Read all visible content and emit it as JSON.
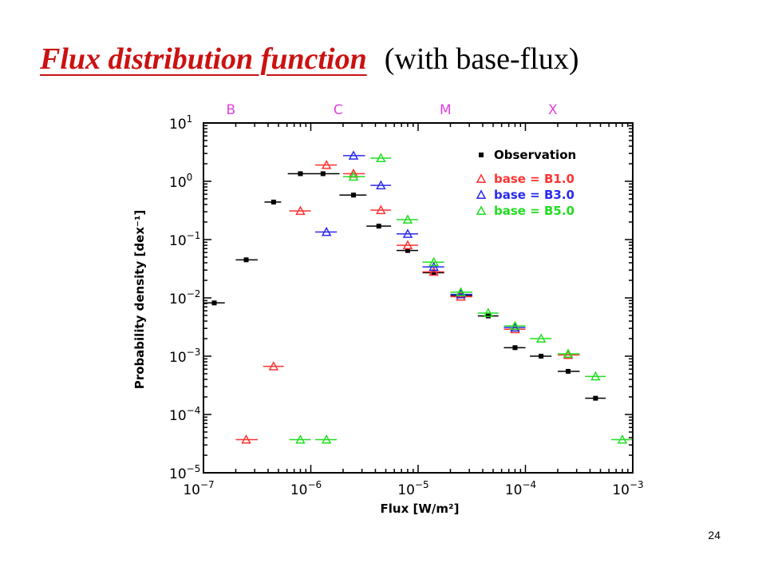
{
  "slide": {
    "title": "Flux distribution function",
    "subtitle": "(with base-flux)",
    "page_number": "24"
  },
  "chart_data": {
    "type": "scatter",
    "title": "",
    "xlabel": "Flux [W/m²]",
    "ylabel": "Probability density [dex⁻¹]",
    "xscale": "log",
    "yscale": "log",
    "xlim": [
      1e-07,
      0.001
    ],
    "ylim": [
      1e-05,
      10
    ],
    "x_ticks": [
      {
        "value": 1e-07,
        "base": "10",
        "exp": "−7"
      },
      {
        "value": 1e-06,
        "base": "10",
        "exp": "−6"
      },
      {
        "value": 1e-05,
        "base": "10",
        "exp": "−5"
      },
      {
        "value": 0.0001,
        "base": "10",
        "exp": "−4"
      },
      {
        "value": 0.001,
        "base": "10",
        "exp": "−3"
      }
    ],
    "y_ticks": [
      {
        "value": 1e-05,
        "base": "10",
        "exp": "−5"
      },
      {
        "value": 0.0001,
        "base": "10",
        "exp": "−4"
      },
      {
        "value": 0.001,
        "base": "10",
        "exp": "−3"
      },
      {
        "value": 0.01,
        "base": "10",
        "exp": "−2"
      },
      {
        "value": 0.1,
        "base": "10",
        "exp": "−1"
      },
      {
        "value": 1,
        "base": "10",
        "exp": "0"
      },
      {
        "value": 10,
        "base": "10",
        "exp": "1"
      }
    ],
    "class_labels": [
      {
        "label": "B",
        "x": 1.8e-07
      },
      {
        "label": "C",
        "x": 1.8e-06
      },
      {
        "label": "M",
        "x": 1.8e-05
      },
      {
        "label": "X",
        "x": 0.00018
      }
    ],
    "class_label_color": "#e040e0",
    "legend_position": "top-right",
    "series": [
      {
        "name": "Observation",
        "marker": "square",
        "color": "#000000",
        "points": [
          {
            "x": 1.26e-07,
            "y": 0.0082,
            "x_err": [
              1e-07,
              1.58e-07
            ]
          },
          {
            "x": 2.5e-07,
            "y": 0.045,
            "x_err": [
              2e-07,
              3.2e-07
            ]
          },
          {
            "x": 4.5e-07,
            "y": 0.44,
            "x_err": [
              3.7e-07,
              5.3e-07
            ]
          },
          {
            "x": 8e-07,
            "y": 1.35,
            "x_err": [
              6.1e-07,
              1e-06
            ]
          },
          {
            "x": 1.3e-06,
            "y": 1.35,
            "x_err": [
              1e-06,
              1.85e-06
            ]
          },
          {
            "x": 2.5e-06,
            "y": 0.58,
            "x_err": [
              1.85e-06,
              3.3e-06
            ]
          },
          {
            "x": 4.3e-06,
            "y": 0.17,
            "x_err": [
              3.3e-06,
              5.6e-06
            ]
          },
          {
            "x": 8e-06,
            "y": 0.065,
            "x_err": [
              6.3e-06,
              1e-05
            ]
          },
          {
            "x": 1.4e-05,
            "y": 0.027,
            "x_err": [
              1.1e-05,
              1.75e-05
            ]
          },
          {
            "x": 2.5e-05,
            "y": 0.011,
            "x_err": [
              2e-05,
              3.2e-05
            ]
          },
          {
            "x": 4.5e-05,
            "y": 0.0049,
            "x_err": [
              3.6e-05,
              5.6e-05
            ]
          },
          {
            "x": 8e-05,
            "y": 0.0014,
            "x_err": [
              6.3e-05,
              0.0001
            ]
          },
          {
            "x": 0.00014,
            "y": 0.001,
            "x_err": [
              0.00011,
              0.000175
            ]
          },
          {
            "x": 0.00025,
            "y": 0.00055,
            "x_err": [
              0.0002,
              0.00032
            ]
          },
          {
            "x": 0.00045,
            "y": 0.00019,
            "x_err": [
              0.00036,
              0.00056
            ]
          }
        ]
      },
      {
        "name": "base = B1.0",
        "marker": "triangle",
        "color": "#ff3333",
        "points": [
          {
            "x": 2.5e-07,
            "y": 3.7e-05,
            "x_err": [
              2e-07,
              3.2e-07
            ]
          },
          {
            "x": 4.5e-07,
            "y": 0.00067,
            "x_err": [
              3.6e-07,
              5.6e-07
            ]
          },
          {
            "x": 8e-07,
            "y": 0.31,
            "x_err": [
              6.3e-07,
              1e-06
            ]
          },
          {
            "x": 1.4e-06,
            "y": 1.9,
            "x_err": [
              1.1e-06,
              1.75e-06
            ]
          },
          {
            "x": 2.5e-06,
            "y": 1.35,
            "x_err": [
              2e-06,
              3.2e-06
            ]
          },
          {
            "x": 4.5e-06,
            "y": 0.32,
            "x_err": [
              3.6e-06,
              5.6e-06
            ]
          },
          {
            "x": 8e-06,
            "y": 0.08,
            "x_err": [
              6.3e-06,
              1e-05
            ]
          },
          {
            "x": 1.4e-05,
            "y": 0.028,
            "x_err": [
              1.1e-05,
              1.75e-05
            ]
          },
          {
            "x": 2.5e-05,
            "y": 0.0105,
            "x_err": [
              2e-05,
              3.2e-05
            ]
          },
          {
            "x": 8e-05,
            "y": 0.0029,
            "x_err": [
              6.3e-05,
              0.0001
            ]
          },
          {
            "x": 0.00025,
            "y": 0.00105,
            "x_err": [
              0.0002,
              0.00032
            ]
          }
        ]
      },
      {
        "name": "base = B3.0",
        "marker": "triangle",
        "color": "#2a2aee",
        "points": [
          {
            "x": 1.4e-06,
            "y": 0.135,
            "x_err": [
              1.1e-06,
              1.75e-06
            ]
          },
          {
            "x": 2.5e-06,
            "y": 2.75,
            "x_err": [
              2e-06,
              3.2e-06
            ]
          },
          {
            "x": 4.5e-06,
            "y": 0.85,
            "x_err": [
              3.6e-06,
              5.6e-06
            ]
          },
          {
            "x": 8e-06,
            "y": 0.125,
            "x_err": [
              6.3e-06,
              1e-05
            ]
          },
          {
            "x": 1.4e-05,
            "y": 0.034,
            "x_err": [
              1.1e-05,
              1.75e-05
            ]
          },
          {
            "x": 2.5e-05,
            "y": 0.0115,
            "x_err": [
              2e-05,
              3.2e-05
            ]
          },
          {
            "x": 8e-05,
            "y": 0.0031,
            "x_err": [
              6.3e-05,
              0.0001
            ]
          }
        ]
      },
      {
        "name": "base = B5.0",
        "marker": "triangle",
        "color": "#22dd22",
        "points": [
          {
            "x": 8e-07,
            "y": 3.7e-05,
            "x_err": [
              6.3e-07,
              1e-06
            ]
          },
          {
            "x": 1.4e-06,
            "y": 3.7e-05,
            "x_err": [
              1.1e-06,
              1.75e-06
            ]
          },
          {
            "x": 2.5e-06,
            "y": 1.2,
            "x_err": [
              2e-06,
              3.2e-06
            ]
          },
          {
            "x": 4.5e-06,
            "y": 2.5,
            "x_err": [
              3.6e-06,
              5.6e-06
            ]
          },
          {
            "x": 8e-06,
            "y": 0.22,
            "x_err": [
              6.3e-06,
              1e-05
            ]
          },
          {
            "x": 1.4e-05,
            "y": 0.041,
            "x_err": [
              1.1e-05,
              1.75e-05
            ]
          },
          {
            "x": 2.5e-05,
            "y": 0.0125,
            "x_err": [
              2e-05,
              3.2e-05
            ]
          },
          {
            "x": 4.5e-05,
            "y": 0.0055,
            "x_err": [
              3.6e-05,
              5.6e-05
            ]
          },
          {
            "x": 8e-05,
            "y": 0.0033,
            "x_err": [
              6.3e-05,
              0.0001
            ]
          },
          {
            "x": 0.00014,
            "y": 0.002,
            "x_err": [
              0.00011,
              0.000175
            ]
          },
          {
            "x": 0.00025,
            "y": 0.0011,
            "x_err": [
              0.0002,
              0.00032
            ]
          },
          {
            "x": 0.00045,
            "y": 0.00045,
            "x_err": [
              0.00036,
              0.00056
            ]
          },
          {
            "x": 0.0008,
            "y": 3.7e-05,
            "x_err": [
              0.00063,
              0.001
            ]
          }
        ]
      }
    ]
  }
}
